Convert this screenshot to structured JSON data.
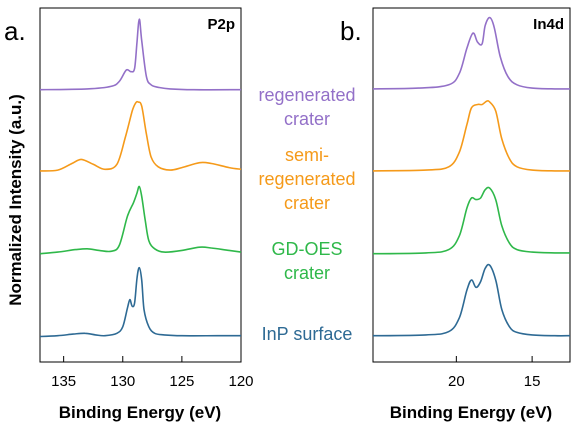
{
  "chart_data": [
    {
      "type": "line",
      "panel_letter": "a.",
      "corner_label": "P2p",
      "xlabel": "Binding Energy (eV)",
      "ylabel": "Normalized Intensity (a.u.)",
      "xlim": [
        137,
        120
      ],
      "x_ticks": [
        135,
        130,
        125,
        120
      ],
      "series": [
        {
          "name": "regenerated crater",
          "label_lines": [
            "regenerated",
            "crater"
          ],
          "color": "#9370c8",
          "offset": 3.0,
          "x": [
            137,
            133,
            131,
            130.3,
            129.7,
            129.3,
            129.0,
            128.8,
            128.6,
            128.4,
            128.0,
            127.6,
            127.0,
            126.0,
            124,
            120
          ],
          "y": [
            0.04,
            0.05,
            0.08,
            0.14,
            0.28,
            0.26,
            0.3,
            0.62,
            0.9,
            0.64,
            0.2,
            0.1,
            0.07,
            0.05,
            0.04,
            0.04
          ]
        },
        {
          "name": "semi-regenerated crater",
          "label_lines": [
            "semi-",
            "regenerated",
            "crater"
          ],
          "color": "#f59a1a",
          "offset": 2.0,
          "x": [
            137,
            135.5,
            134.3,
            133.5,
            132.5,
            131.5,
            130.5,
            129.8,
            129.2,
            128.9,
            128.7,
            128.4,
            128.0,
            127.6,
            127.0,
            126.0,
            125.0,
            123.5,
            122.5,
            121,
            120
          ],
          "y": [
            0.05,
            0.06,
            0.14,
            0.19,
            0.13,
            0.07,
            0.13,
            0.45,
            0.78,
            0.88,
            0.89,
            0.84,
            0.5,
            0.22,
            0.1,
            0.06,
            0.09,
            0.15,
            0.14,
            0.09,
            0.07
          ]
        },
        {
          "name": "GD-OES crater",
          "label_lines": [
            "GD-OES",
            "crater"
          ],
          "color": "#2fb84a",
          "offset": 1.0,
          "x": [
            137,
            135.5,
            134,
            133,
            132,
            131,
            130.3,
            129.6,
            129.1,
            128.8,
            128.6,
            128.4,
            128.1,
            127.8,
            127.3,
            126.5,
            125,
            123.5,
            122.5,
            121,
            120
          ],
          "y": [
            0.04,
            0.06,
            0.09,
            0.1,
            0.08,
            0.07,
            0.14,
            0.5,
            0.66,
            0.78,
            0.86,
            0.74,
            0.45,
            0.2,
            0.1,
            0.06,
            0.08,
            0.12,
            0.11,
            0.08,
            0.06
          ]
        },
        {
          "name": "InP surface",
          "label_lines": [
            "InP surface"
          ],
          "color": "#2e6a94",
          "offset": 0.0,
          "x": [
            137,
            135.5,
            134.2,
            133.2,
            132.3,
            131.5,
            130.5,
            130.0,
            129.6,
            129.4,
            129.2,
            129.0,
            128.8,
            128.6,
            128.4,
            128.2,
            127.8,
            127.3,
            126.5,
            125,
            122,
            120
          ],
          "y": [
            0.03,
            0.04,
            0.06,
            0.07,
            0.05,
            0.04,
            0.07,
            0.15,
            0.38,
            0.48,
            0.4,
            0.44,
            0.74,
            0.87,
            0.72,
            0.36,
            0.15,
            0.07,
            0.05,
            0.04,
            0.04,
            0.04
          ]
        }
      ]
    },
    {
      "type": "line",
      "panel_letter": "b.",
      "corner_label": "In4d",
      "xlabel": "Binding Energy (eV)",
      "xlim": [
        25.5,
        12.5
      ],
      "x_ticks": [
        20,
        15
      ],
      "series": [
        {
          "name": "regenerated crater",
          "color": "#9370c8",
          "offset": 3.0,
          "x": [
            25.5,
            22.5,
            20.5,
            19.8,
            19.3,
            18.9,
            18.6,
            18.3,
            18.1,
            17.8,
            17.5,
            17.1,
            16.6,
            16.0,
            15.0,
            13.5,
            12.5
          ],
          "y": [
            0.05,
            0.06,
            0.1,
            0.24,
            0.55,
            0.73,
            0.62,
            0.6,
            0.82,
            0.92,
            0.8,
            0.44,
            0.2,
            0.1,
            0.06,
            0.05,
            0.05
          ]
        },
        {
          "name": "semi-regenerated crater",
          "color": "#f59a1a",
          "offset": 2.0,
          "x": [
            25.5,
            22.0,
            20.5,
            19.8,
            19.3,
            19.0,
            18.6,
            18.3,
            18.0,
            17.8,
            17.4,
            17.0,
            16.5,
            16.0,
            15.0,
            13.5,
            12.5
          ],
          "y": [
            0.05,
            0.06,
            0.1,
            0.28,
            0.62,
            0.82,
            0.86,
            0.86,
            0.9,
            0.89,
            0.78,
            0.44,
            0.2,
            0.1,
            0.06,
            0.05,
            0.05
          ]
        },
        {
          "name": "GD-OES crater",
          "color": "#2fb84a",
          "offset": 1.0,
          "x": [
            25.5,
            22.0,
            20.5,
            19.8,
            19.3,
            19.0,
            18.7,
            18.4,
            18.1,
            17.8,
            17.4,
            17.0,
            16.5,
            16.0,
            15.0,
            13.5,
            12.5
          ],
          "y": [
            0.04,
            0.05,
            0.09,
            0.26,
            0.6,
            0.72,
            0.7,
            0.72,
            0.82,
            0.84,
            0.7,
            0.38,
            0.17,
            0.09,
            0.06,
            0.05,
            0.05
          ]
        },
        {
          "name": "InP surface",
          "color": "#2e6a94",
          "offset": 0.0,
          "x": [
            25.5,
            22.0,
            20.5,
            19.8,
            19.3,
            19.0,
            18.7,
            18.4,
            18.1,
            17.8,
            17.4,
            17.0,
            16.5,
            16.0,
            15.0,
            13.5,
            12.5
          ],
          "y": [
            0.04,
            0.05,
            0.09,
            0.26,
            0.6,
            0.72,
            0.63,
            0.7,
            0.86,
            0.9,
            0.72,
            0.36,
            0.15,
            0.08,
            0.05,
            0.04,
            0.04
          ]
        }
      ]
    }
  ]
}
